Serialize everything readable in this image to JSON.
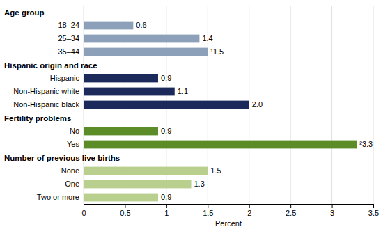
{
  "chart_data": {
    "type": "bar",
    "orientation": "horizontal",
    "categories": [
      "Age group",
      "18–24",
      "25–34",
      "35–44",
      "Hispanic origin and race",
      "Hispanic",
      "Non-Hispanic white",
      "Non-Hispanic black",
      "Fertility problems",
      "No",
      "Yes",
      "Number of previous live births",
      "None",
      "One",
      "Two or more"
    ],
    "values": [
      null,
      0.6,
      1.4,
      1.5,
      null,
      0.9,
      1.1,
      2.0,
      null,
      0.9,
      3.3,
      null,
      1.5,
      1.3,
      0.9
    ],
    "value_labels": [
      null,
      "0.6",
      "1.4",
      "¹1.5",
      null,
      "0.9",
      "1.1",
      "2.0",
      null,
      "0.9",
      "²3.3",
      null,
      "1.5",
      "1.3",
      "0.9"
    ],
    "colors": [
      null,
      "#8da0ba",
      "#8da0ba",
      "#8da0ba",
      null,
      "#1b2a5a",
      "#1b2a5a",
      "#1b2a5a",
      null,
      "#5b8c28",
      "#5b8c28",
      null,
      "#b8cf8e",
      "#b8cf8e",
      "#b8cf8e"
    ],
    "xlabel": "Percent",
    "xlim": [
      0,
      3.5
    ],
    "xticks": [
      0,
      0.5,
      1,
      1.5,
      2,
      2.5,
      3,
      3.5
    ],
    "grid": true,
    "data_labels": true
  }
}
